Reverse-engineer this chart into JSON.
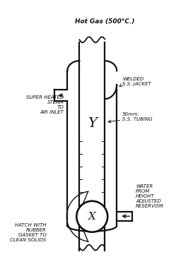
{
  "bg_color": "#ffffff",
  "ink_color": "#111111",
  "figsize": [
    2.66,
    3.91
  ],
  "dpi": 100,
  "title": "Hot Gas (500°C.)",
  "label_welded": "WELDED\nS.S. JACKET",
  "label_50mm": "50mm.\nS.S. TUBING",
  "label_steam": "SUPER HEATED\nSTEAM\nTO\nAIR INLET",
  "label_water": "WATER\nFROM\nHEIGHT\nADJUSTED\nRESERVOIR",
  "label_hatch": "HATCH WITH\nRUBBER\nGASKET TO\nCLEAN SOLIDS",
  "label_Y": "Y",
  "label_X": "X",
  "jL": 95,
  "jR": 165,
  "iL": 112,
  "iR": 148
}
